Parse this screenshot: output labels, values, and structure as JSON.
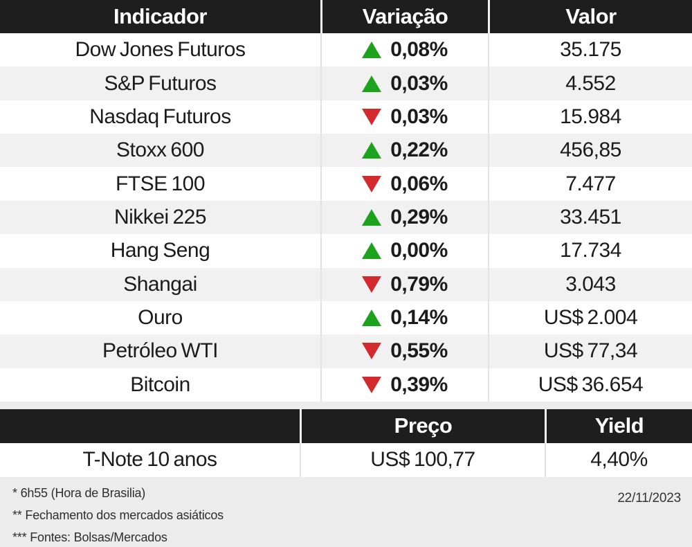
{
  "colors": {
    "up": "#1ca21c",
    "down": "#d42a2e",
    "header_bg": "#1e1e1e",
    "alt_row_bg": "#f1f1f1",
    "page_bg": "#ececec"
  },
  "markets_table": {
    "headers": {
      "indicator": "Indicador",
      "change": "Variação",
      "value": "Valor"
    },
    "rows": [
      {
        "indicator": "Dow Jones Futuros",
        "direction": "up",
        "change": "0,08%",
        "value": "35.175"
      },
      {
        "indicator": "S&P Futuros",
        "direction": "up",
        "change": "0,03%",
        "value": "4.552"
      },
      {
        "indicator": "Nasdaq Futuros",
        "direction": "down",
        "change": "0,03%",
        "value": "15.984"
      },
      {
        "indicator": "Stoxx 600",
        "direction": "up",
        "change": "0,22%",
        "value": "456,85"
      },
      {
        "indicator": "FTSE 100",
        "direction": "down",
        "change": "0,06%",
        "value": "7.477"
      },
      {
        "indicator": "Nikkei 225",
        "direction": "up",
        "change": "0,29%",
        "value": "33.451"
      },
      {
        "indicator": "Hang Seng",
        "direction": "up",
        "change": "0,00%",
        "value": "17.734"
      },
      {
        "indicator": "Shangai",
        "direction": "down",
        "change": "0,79%",
        "value": "3.043"
      },
      {
        "indicator": "Ouro",
        "direction": "up",
        "change": "0,14%",
        "value": "US$ 2.004"
      },
      {
        "indicator": "Petróleo WTI",
        "direction": "down",
        "change": "0,55%",
        "value": "US$ 77,34"
      },
      {
        "indicator": "Bitcoin",
        "direction": "down",
        "change": "0,39%",
        "value": "US$ 36.654"
      }
    ]
  },
  "bond_table": {
    "headers": {
      "indicator": "",
      "price": "Preço",
      "yield": "Yield"
    },
    "rows": [
      {
        "indicator": "T-Note 10 anos",
        "price": "US$ 100,77",
        "yield": "4,40%"
      }
    ]
  },
  "footer": {
    "notes": [
      "* 6h55 (Hora de Brasilia)",
      "** Fechamento dos mercados asiáticos",
      "*** Fontes: Bolsas/Mercados"
    ],
    "date": "22/11/2023"
  },
  "chart_data": {
    "type": "table",
    "tables": [
      {
        "title": "Indicadores de mercado",
        "columns": [
          "Indicador",
          "Variação",
          "Valor"
        ],
        "rows": [
          [
            "Dow Jones Futuros",
            "+0,08%",
            "35.175"
          ],
          [
            "S&P Futuros",
            "+0,03%",
            "4.552"
          ],
          [
            "Nasdaq Futuros",
            "-0,03%",
            "15.984"
          ],
          [
            "Stoxx 600",
            "+0,22%",
            "456,85"
          ],
          [
            "FTSE 100",
            "-0,06%",
            "7.477"
          ],
          [
            "Nikkei 225",
            "+0,29%",
            "33.451"
          ],
          [
            "Hang Seng",
            "+0,00%",
            "17.734"
          ],
          [
            "Shangai",
            "-0,79%",
            "3.043"
          ],
          [
            "Ouro",
            "+0,14%",
            "US$ 2.004"
          ],
          [
            "Petróleo WTI",
            "-0,55%",
            "US$ 77,34"
          ],
          [
            "Bitcoin",
            "-0,39%",
            "US$ 36.654"
          ]
        ]
      },
      {
        "title": "Títulos",
        "columns": [
          "",
          "Preço",
          "Yield"
        ],
        "rows": [
          [
            "T-Note 10 anos",
            "US$ 100,77",
            "4,40%"
          ]
        ]
      }
    ],
    "annotations": [
      "* 6h55 (Hora de Brasilia)",
      "** Fechamento dos mercados asiáticos",
      "*** Fontes: Bolsas/Mercados",
      "22/11/2023"
    ]
  }
}
